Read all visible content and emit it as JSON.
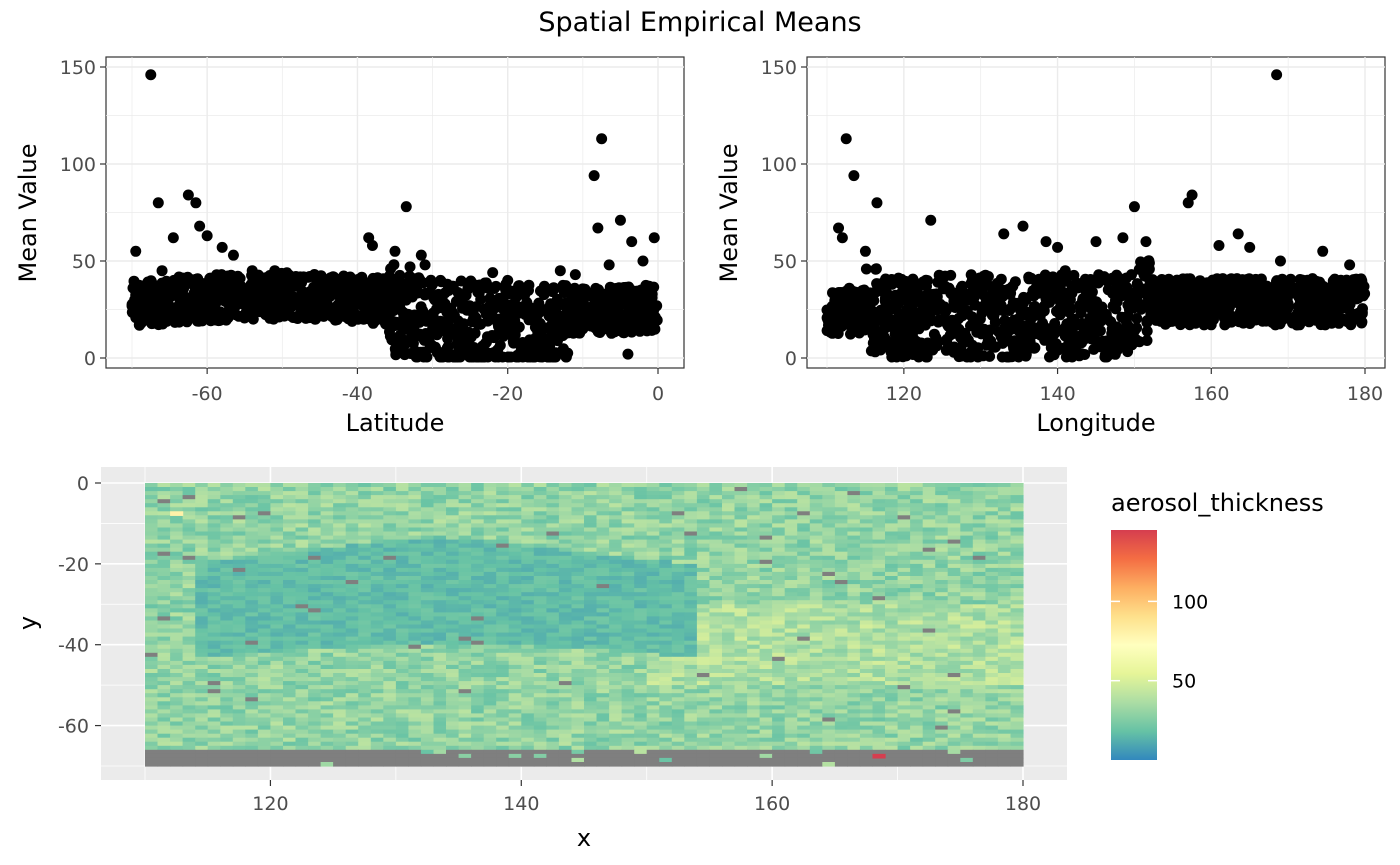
{
  "title": "Spatial Empirical Means",
  "chart_data": [
    {
      "type": "scatter",
      "xlabel": "Latitude",
      "ylabel": "Mean Value",
      "xlim": [
        -70,
        0
      ],
      "ylim": [
        0,
        150
      ],
      "xticks": [
        -60,
        -40,
        -20,
        0
      ],
      "yticks": [
        0,
        50,
        100,
        150
      ],
      "grid": true,
      "point_color": "#000000",
      "x": [
        -67.5,
        -66.5,
        -69.5,
        -66,
        -64.5,
        -62.5,
        -61.5,
        -61,
        -60,
        -58,
        -56.5,
        -54,
        -51,
        -38.5,
        -38,
        -35,
        -33.5,
        -33,
        -31.5,
        -31,
        -22,
        -20,
        -13,
        -11,
        -8.5,
        -7.5,
        -8,
        -6.5,
        -5,
        -3.5,
        -0.5,
        -2,
        -4,
        -69,
        -68,
        -65,
        -60,
        -55,
        -50,
        -48,
        -45,
        -42,
        -40,
        -36,
        -30,
        -28,
        -25,
        -18,
        -15,
        -10,
        -5,
        -2,
        -1,
        -50,
        -45,
        -28,
        -19
      ],
      "y": [
        146,
        80,
        55,
        45,
        62,
        84,
        80,
        68,
        63,
        57,
        53,
        45,
        45,
        62,
        58,
        55,
        78,
        47,
        53,
        48,
        44,
        40,
        45,
        43,
        94,
        113,
        67,
        48,
        71,
        60,
        62,
        50,
        2,
        25,
        30,
        20,
        28,
        35,
        30,
        28,
        25,
        28,
        22,
        20,
        15,
        10,
        12,
        8,
        10,
        15,
        20,
        25,
        18,
        32,
        28,
        18,
        12
      ]
    },
    {
      "type": "scatter",
      "xlabel": "Longitude",
      "ylabel": "Mean Value",
      "xlim": [
        110,
        180
      ],
      "ylim": [
        0,
        150
      ],
      "xticks": [
        120,
        140,
        160,
        180
      ],
      "yticks": [
        0,
        50,
        100,
        150
      ],
      "grid": true,
      "point_color": "#000000",
      "x": [
        168.5,
        112.5,
        113.5,
        116.5,
        123.5,
        111.5,
        112,
        115,
        133,
        135.5,
        138.5,
        140,
        145,
        148.5,
        150,
        151.5,
        157,
        157.5,
        161,
        163.5,
        165,
        169,
        174.5,
        178,
        152,
        141,
        131,
        129,
        120,
        118,
        125,
        135,
        143,
        147,
        155,
        160,
        170,
        176
      ],
      "y": [
        146,
        113,
        94,
        80,
        71,
        67,
        62,
        55,
        64,
        68,
        60,
        57,
        60,
        62,
        78,
        60,
        80,
        84,
        58,
        64,
        57,
        50,
        55,
        48,
        40,
        45,
        42,
        40,
        30,
        25,
        20,
        15,
        10,
        5,
        28,
        30,
        28,
        25
      ]
    },
    {
      "type": "heatmap",
      "xlabel": "x",
      "ylabel": "y",
      "xlim": [
        110,
        180
      ],
      "ylim": [
        -70,
        0
      ],
      "xticks": [
        120,
        140,
        160,
        180
      ],
      "yticks": [
        0,
        -20,
        -40,
        -60
      ],
      "legend_title": "aerosol_thickness",
      "legend_ticks": [
        50,
        100
      ],
      "color_range": [
        0,
        145
      ],
      "na_color": "#7f7f7f",
      "palette": [
        "#3288bd",
        "#66c2a5",
        "#abdda4",
        "#e6f598",
        "#ffffbf",
        "#fee08b",
        "#fdae61",
        "#f46d43",
        "#d53e4f"
      ],
      "features": {
        "low_region": {
          "lon": [
            114,
            154
          ],
          "lat": [
            -40,
            -13
          ],
          "value": 12
        },
        "background_value": 30,
        "na_band_lat": [
          -70,
          -66
        ],
        "notable_cells": [
          {
            "lon": 112.5,
            "lat": -7.5,
            "value": 80
          },
          {
            "lon": 168.5,
            "lat": -67.5,
            "value": 146
          }
        ]
      }
    }
  ]
}
